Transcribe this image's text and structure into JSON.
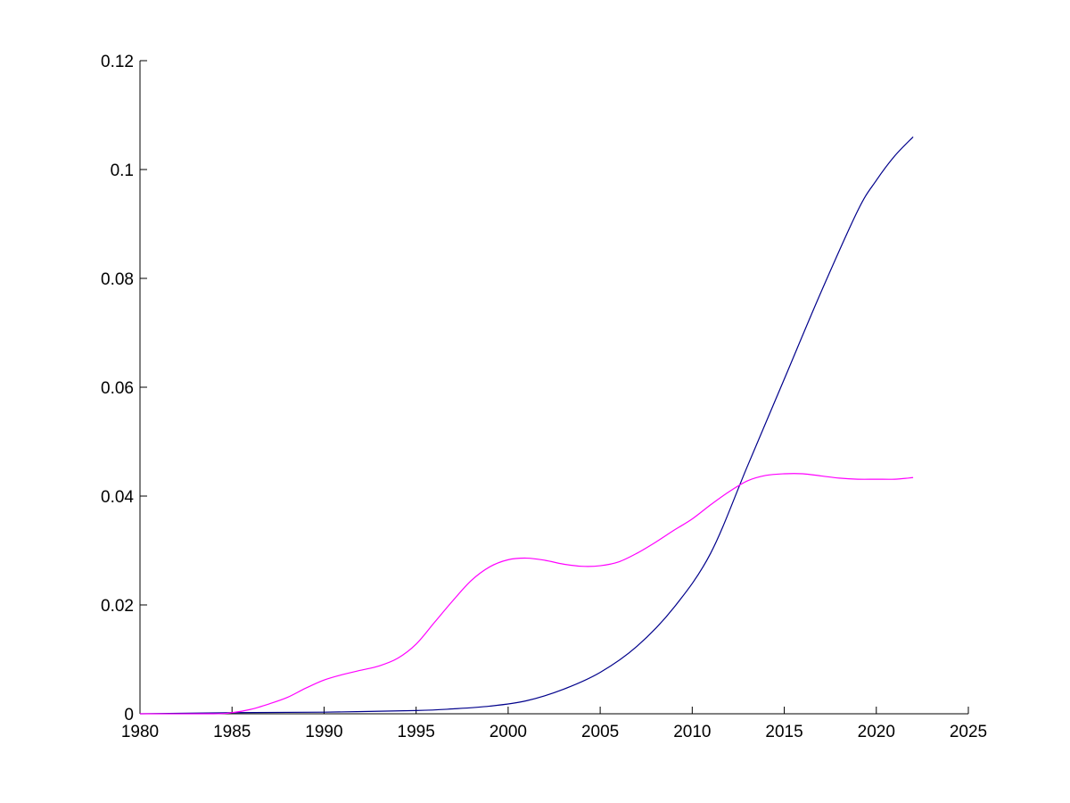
{
  "chart_data": {
    "type": "line",
    "title": "",
    "xlabel": "",
    "ylabel": "",
    "xlim": [
      1980,
      2025
    ],
    "ylim": [
      0,
      0.12
    ],
    "grid": false,
    "x_ticks": [
      1980,
      1985,
      1990,
      1995,
      2000,
      2005,
      2010,
      2015,
      2020,
      2025
    ],
    "x_tick_labels": [
      "1980",
      "1985",
      "1990",
      "1995",
      "2000",
      "2005",
      "2010",
      "2015",
      "2020",
      "2025"
    ],
    "y_ticks": [
      0,
      0.02,
      0.04,
      0.06,
      0.08,
      0.1,
      0.12
    ],
    "y_tick_labels": [
      "0",
      "0.02",
      "0.04",
      "0.06",
      "0.08",
      "0.1",
      "0.12"
    ],
    "series": [
      {
        "color": "#00008b",
        "x": [
          1980,
          1985,
          1990,
          1995,
          1997,
          1999,
          2001,
          2003,
          2005,
          2007,
          2009,
          2011,
          2013,
          2015,
          2017,
          2019,
          2020,
          2021,
          2022
        ],
        "y": [
          0.0,
          0.0002,
          0.0003,
          0.0006,
          0.0009,
          0.0014,
          0.0024,
          0.0045,
          0.0076,
          0.0124,
          0.0195,
          0.0295,
          0.0455,
          0.0615,
          0.0775,
          0.0925,
          0.098,
          0.1025,
          0.106
        ]
      },
      {
        "color": "#ff00ff",
        "x": [
          1980,
          1984,
          1985,
          1986,
          1987,
          1988,
          1989,
          1990,
          1991,
          1992,
          1993,
          1994,
          1995,
          1996,
          1997,
          1998,
          1999,
          2000,
          2001,
          2002,
          2003,
          2004,
          2005,
          2006,
          2007,
          2008,
          2009,
          2010,
          2011,
          2012,
          2013,
          2014,
          2015,
          2016,
          2017,
          2018,
          2019,
          2020,
          2021,
          2022
        ],
        "y": [
          0.0,
          0.0,
          0.0002,
          0.0008,
          0.0018,
          0.003,
          0.0047,
          0.0062,
          0.0072,
          0.008,
          0.0088,
          0.0102,
          0.0128,
          0.0168,
          0.0208,
          0.0245,
          0.027,
          0.0283,
          0.0286,
          0.0282,
          0.0275,
          0.0271,
          0.0272,
          0.0279,
          0.0295,
          0.0315,
          0.0337,
          0.0358,
          0.0384,
          0.0408,
          0.0428,
          0.0438,
          0.0441,
          0.0441,
          0.0437,
          0.0433,
          0.0431,
          0.0431,
          0.0431,
          0.0434
        ]
      }
    ]
  }
}
